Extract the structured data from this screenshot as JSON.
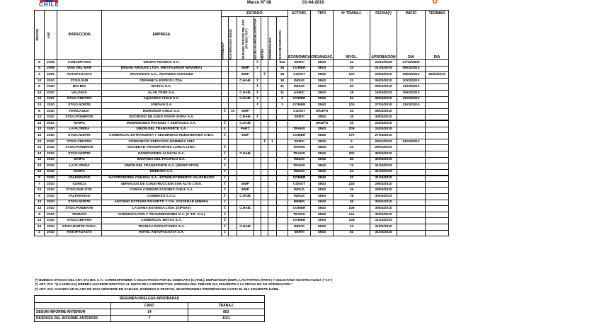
{
  "page": {
    "brand": "CHILE",
    "report_period": "Marzo Nº 08",
    "report_date": "01-04-2010"
  },
  "table": {
    "group_header": "ESTADO",
    "columns": {
      "region": "REGION",
      "ano": "AÑO",
      "inspeccion": "INSPECCION",
      "empresa": "EMPRESA",
      "estado_sub": [
        "APROBADA",
        "POSTERGADA (DIAS)",
        "BUENOS OFICIOS DEL ART. 374 BIS (\"XX\")",
        "NO SE HA HECHO EFECTIVA",
        "HECHA",
        "PRORROGADA",
        "DIAS DE DURACION"
      ],
      "actividad_top": "ACTIVID.",
      "actividad_bottom": "ECONOMICA",
      "tipo_top": "TIPO",
      "tipo_bottom": "ORGANIZAC.",
      "trab_top": "Nº TRABAJ.",
      "trab_bottom": "INVOL.",
      "fecha_top": "FECHA(*)",
      "fecha_bottom": "APROBACION",
      "inicio_top": "INICIO",
      "inicio_bottom": "DIA",
      "termino_top": "TERMINO",
      "termino_bottom": "DIA"
    },
    "rows": [
      {
        "region": "8",
        "ano": "2009",
        "inspeccion": "CONCEPCION",
        "empresa": "GRUPO TECNICO S.A.",
        "e1": "",
        "e2": "",
        "e3": "",
        "e4": "X",
        "e5": "",
        "e6": "",
        "e7": "522",
        "actividad": "SERVI",
        "tipo": "SIND",
        "trab": "31",
        "fecha": "24/12/2009",
        "inicio": "27/12/2009",
        "termino": ""
      },
      {
        "region": "5",
        "ano": "2009",
        "inspeccion": "VIÑA DEL MAR",
        "empresa": "BRUNO ARGUAZ LTDA. (RESTAURANT BAVIERA)",
        "e1": "",
        "e2": "",
        "e3": "EMP",
        "e4": "X",
        "e5": "",
        "e6": "",
        "e7": "26",
        "actividad": "COMER",
        "tipo": "SIND",
        "trab": "33",
        "fecha": "01/03/2010",
        "inicio": "05/03/2010",
        "termino": ""
      },
      {
        "region": "2",
        "ano": "2009",
        "inspeccion": "ANTOFAGASTA",
        "empresa": "GRANADOS S.A., ADANDEZ SANCHEZ",
        "e1": "",
        "e2": "",
        "e3": "EMP",
        "e4": "",
        "e5": "X",
        "e6": "",
        "e7": "18",
        "actividad": "CONST",
        "tipo": "SIND",
        "trab": "103",
        "fecha": "03/03/2010",
        "inicio": "05/03/2010",
        "termino": "30/03/2010"
      },
      {
        "region": "13",
        "ano": "2010",
        "inspeccion": "STGO.SUR",
        "empresa": "CERAMICA ESPEJO LTDA.",
        "e1": "",
        "e2": "",
        "e3": "C.HAB.",
        "e4": "X",
        "e5": "",
        "e6": "",
        "e7": "18",
        "actividad": "INDUS",
        "tipo": "SIND",
        "trab": "33",
        "fecha": "05/03/2010",
        "inicio": "10/03/2010",
        "termino": ""
      },
      {
        "region": "8",
        "ano": "2010",
        "inspeccion": "BIO BIO",
        "empresa": "BOTTAI S.A.",
        "e1": "",
        "e2": "",
        "e3": "",
        "e4": "X",
        "e5": "",
        "e6": "",
        "e7": "11",
        "actividad": "INDUS",
        "tipo": "SIND",
        "trab": "83",
        "fecha": "08/03/2010",
        "inicio": "11/03/2010",
        "termino": ""
      },
      {
        "region": "14",
        "ano": "2010",
        "inspeccion": "VALDIVIA",
        "empresa": "ALAN TENN S.A.",
        "e1": "",
        "e2": "",
        "e3": "C.HAB.",
        "e4": "X",
        "e5": "",
        "e6": "",
        "e7": "11",
        "actividad": "AGRIC",
        "tipo": "SIND",
        "trab": "18",
        "fecha": "16/03/2010",
        "inicio": "19/03/2010",
        "termino": ""
      },
      {
        "region": "13",
        "ano": "2010",
        "inspeccion": "STGO.CENTRO",
        "empresa": "AQUANOX CHILE S.A.",
        "e1": "",
        "e2": "",
        "e3": "C.HAB.",
        "e4": "X",
        "e5": "",
        "e6": "",
        "e7": "3",
        "actividad": "COMER",
        "tipo": "SIND",
        "trab": "94",
        "fecha": "08/03/2010",
        "inicio": "31/03/2010",
        "termino": ""
      },
      {
        "region": "13",
        "ano": "2010",
        "inspeccion": "STGO.NORTE",
        "empresa": "JORDAN S.A.",
        "e1": "",
        "e2": "",
        "e3": "",
        "e4": "X",
        "e5": "",
        "e6": "",
        "e7": "3",
        "actividad": "COMER",
        "tipo": "SIND",
        "trab": "103",
        "fecha": "27/03/2010",
        "inicio": "31/03/2010",
        "termino": ""
      },
      {
        "region": "6",
        "ano": "2010",
        "inspeccion": "RANCAGUA",
        "empresa": "HIDRONOR CHILE S.A.",
        "e1": "X",
        "e2": "10",
        "e3": "EMP",
        "e4": "",
        "e5": "",
        "e6": "",
        "e7": "",
        "actividad": "CONST",
        "tipo": "GRUPO",
        "trab": "33",
        "fecha": "08/03/2010",
        "inicio": "",
        "termino": ""
      },
      {
        "region": "13",
        "ano": "2010",
        "inspeccion": "STGO.PONIENTE",
        "empresa": "SOCIEDAD DE ASEO SANTA SOFIA S.A.",
        "e1": "",
        "e2": "",
        "e3": "C.HAB.",
        "e4": "X",
        "e5": "",
        "e6": "",
        "e7": "",
        "actividad": "SERVI",
        "tipo": "SIND",
        "trab": "16",
        "fecha": "30/03/2010",
        "inicio": "",
        "termino": "",
        "sep": true
      },
      {
        "region": "13",
        "ano": "2010",
        "inspeccion": "MAIPU",
        "empresa": "INVERSIONES PACKING Y SERVICIOS S.A.",
        "e1": "X",
        "e2": "",
        "e3": "C.HAB.",
        "e4": "",
        "e5": "",
        "e6": "",
        "e7": "",
        "actividad": "",
        "tipo": "GRUPO",
        "trab": "33",
        "fecha": "24/03/2010",
        "inicio": "",
        "termino": ""
      },
      {
        "region": "13",
        "ano": "2010",
        "inspeccion": "LA FLORIDA",
        "empresa": "UNION DEL TRANSPORTE S.A.",
        "e1": "X",
        "e2": "",
        "e3": "PART.",
        "e4": "",
        "e5": "",
        "e6": "",
        "e7": "",
        "actividad": "TRANS",
        "tipo": "SIND",
        "trab": "205",
        "fecha": "24/03/2010",
        "inicio": "",
        "termino": ""
      },
      {
        "region": "13",
        "ano": "2010",
        "inspeccion": "STGO.NORTE",
        "empresa": "COMERCIAL EXTRANJERA Y SEGURIDAD HUECHURABA LTDA.",
        "e1": "X",
        "e2": "",
        "e3": "EMP",
        "e4": "",
        "e5": "",
        "e6": "",
        "e7": "",
        "actividad": "COMER",
        "tipo": "SIND",
        "trab": "170",
        "fecha": "27/03/2010",
        "inicio": "",
        "termino": ""
      },
      {
        "region": "13",
        "ano": "2010",
        "inspeccion": "STGO.CENTRO",
        "empresa": "CONSORCIO SERVICIOS HORMIGA 1010",
        "e1": "",
        "e2": "",
        "e3": "",
        "e4": "",
        "e5": "X",
        "e6": "1",
        "e7": "",
        "actividad": "SERVI",
        "tipo": "SIND",
        "trab": "6",
        "fecha": "29/03/2010",
        "inicio": "01/04/2010",
        "termino": ""
      },
      {
        "region": "13",
        "ano": "2010",
        "inspeccion": "STGO.PONIENTE",
        "empresa": "SOCIEDAD TRANSPORTES LORCA LTDA.",
        "e1": "X",
        "e2": "",
        "e3": "",
        "e4": "",
        "e5": "",
        "e6": "",
        "e7": "",
        "actividad": "TRANS",
        "tipo": "SIND",
        "trab": "33",
        "fecha": "29/03/2010",
        "inicio": "",
        "termino": ""
      },
      {
        "region": "13",
        "ano": "2010",
        "inspeccion": "STGO.NORTE",
        "empresa": "INVERSIONES ALSACIA S.A.",
        "e1": "X",
        "e2": "",
        "e3": "C.HAB.",
        "e4": "",
        "e5": "",
        "e6": "",
        "e7": "",
        "actividad": "TRANS",
        "tipo": "SIND",
        "trab": "200",
        "fecha": "30/03/2010",
        "inicio": "",
        "termino": ""
      },
      {
        "region": "13",
        "ano": "2010",
        "inspeccion": "MAIPU",
        "empresa": "ENVASES DEL PACIFICO S.A.",
        "e1": "X",
        "e2": "",
        "e3": "",
        "e4": "",
        "e5": "",
        "e6": "",
        "e7": "",
        "actividad": "INDUS",
        "tipo": "SIND",
        "trab": "84",
        "fecha": "30/03/2010",
        "inicio": "",
        "termino": ""
      },
      {
        "region": "13",
        "ano": "2010",
        "inspeccion": "LA FLORIDA",
        "empresa": "UNION DEL TRANSPORTE S.A. (SINDICATOS)",
        "e1": "X",
        "e2": "",
        "e3": "",
        "e4": "",
        "e5": "",
        "e6": "",
        "e7": "",
        "actividad": "TRANS",
        "tipo": "SIND",
        "trab": "73",
        "fecha": "31/03/2010",
        "inicio": "",
        "termino": ""
      },
      {
        "region": "13",
        "ano": "2010",
        "inspeccion": "MAIPU",
        "empresa": "EMEDIOS S.A.",
        "e1": "X",
        "e2": "",
        "e3": "",
        "e4": "",
        "e5": "",
        "e6": "",
        "e7": "",
        "actividad": "INDUS",
        "tipo": "SIND",
        "trab": "64",
        "fecha": "31/03/2010",
        "inicio": "",
        "termino": "",
        "sep": true
      },
      {
        "region": "5",
        "ano": "2010",
        "inspeccion": "VALPARAISO",
        "empresa": "GASTRONOMIA CHILENA S.A., ESTABLECIMIENTO VALPARAISO",
        "e1": "X",
        "e2": "",
        "e3": "",
        "e4": "",
        "e5": "",
        "e6": "",
        "e7": "",
        "actividad": "COMER",
        "tipo": "SIND",
        "trab": "33",
        "fecha": "31/03/2010",
        "inicio": "",
        "termino": ""
      },
      {
        "region": "7",
        "ano": "2010",
        "inspeccion": "CURICO",
        "empresa": "SERVICIOS DE CONSTRUCCION SAN ALTO LTDA.",
        "e1": "X",
        "e2": "",
        "e3": "EMP",
        "e4": "",
        "e5": "",
        "e6": "",
        "e7": "",
        "actividad": "CONST",
        "tipo": "SIND",
        "trab": "245",
        "fecha": "29/03/2010",
        "inicio": "",
        "termino": ""
      },
      {
        "region": "13",
        "ano": "2010",
        "inspeccion": "STGO.SUR OTE.",
        "empresa": "COMSA COMUNICACIONES CHILE S.A.",
        "e1": "X",
        "e2": "",
        "e3": "EMP",
        "e4": "",
        "e5": "",
        "e6": "",
        "e7": "",
        "actividad": "INDUS",
        "tipo": "SIND",
        "trab": "26",
        "fecha": "29/03/2010",
        "inicio": "",
        "termino": ""
      },
      {
        "region": "5",
        "ano": "2010",
        "inspeccion": "VALPARAISO",
        "empresa": "CAMBIASO S.A.C.",
        "e1": "X",
        "e2": "",
        "e3": "C.HAB.",
        "e4": "",
        "e5": "",
        "e6": "",
        "e7": "",
        "actividad": "INDUS",
        "tipo": "SIND",
        "trab": "78",
        "fecha": "30/03/2010",
        "inicio": "",
        "termino": ""
      },
      {
        "region": "13",
        "ano": "2010",
        "inspeccion": "STGO.NORTE",
        "empresa": "ANTONIO ESTEVEZ ROSSETTI Y CIA. SOCIEDAD MINERA",
        "e1": "X",
        "e2": "",
        "e3": "",
        "e4": "",
        "e5": "",
        "e6": "",
        "e7": "",
        "actividad": "MINER",
        "tipo": "SIND",
        "trab": "36",
        "fecha": "30/03/2010",
        "inicio": "",
        "termino": ""
      },
      {
        "region": "13",
        "ano": "2010",
        "inspeccion": "STGO.PONIENTE",
        "empresa": "LA DAMA EXTENSA LTDA. (SIPSAV)",
        "e1": "X",
        "e2": "",
        "e3": "C.HAB.",
        "e4": "",
        "e5": "",
        "e6": "",
        "e7": "",
        "actividad": "COMER",
        "tipo": "SIND",
        "trab": "108",
        "fecha": "30/03/2010",
        "inicio": "",
        "termino": ""
      },
      {
        "region": "9",
        "ano": "2010",
        "inspeccion": "TEMUCO",
        "empresa": "COMUNICACION Y TRANSMISIONES S.A. (C.T.R. S.A.)",
        "e1": "X",
        "e2": "",
        "e3": "",
        "e4": "",
        "e5": "",
        "e6": "",
        "e7": "",
        "actividad": "TRANS",
        "tipo": "SIND",
        "trab": "141",
        "fecha": "30/03/2010",
        "inicio": "",
        "termino": ""
      },
      {
        "region": "13",
        "ano": "2010",
        "inspeccion": "STGO.CENTRO",
        "empresa": "COMERCIAL BOTAS S.A.",
        "e1": "X",
        "e2": "",
        "e3": "",
        "e4": "",
        "e5": "",
        "e6": "",
        "e7": "",
        "actividad": "COMER",
        "tipo": "SIND",
        "trab": "148",
        "fecha": "31/03/2010",
        "inicio": "",
        "termino": ""
      },
      {
        "region": "13",
        "ano": "2010",
        "inspeccion": "STGO.NORTE CHAC.",
        "empresa": "TECNICA RAPACTAREX S.A.",
        "e1": "X",
        "e2": "",
        "e3": "C.HAB.",
        "e4": "",
        "e5": "",
        "e6": "",
        "e7": "",
        "actividad": "INDUS",
        "tipo": "SIND",
        "trab": "13",
        "fecha": "31/03/2010",
        "inicio": "",
        "termino": ""
      },
      {
        "region": "2",
        "ano": "2010",
        "inspeccion": "ANTOFAGASTA",
        "empresa": "HOTEL ANTOFAGASTA S.A.",
        "e1": "X",
        "e2": "",
        "e3": "",
        "e4": "",
        "e5": "",
        "e6": "",
        "e7": "",
        "actividad": "SERVI",
        "tipo": "SIND",
        "trab": "62",
        "fecha": "31/03/2010",
        "inicio": "",
        "termino": ""
      }
    ]
  },
  "footnotes": [
    "(*) BUENOS OFICIOS DEL ART. 374 BIS, C.T.: CORRESPONDEN A SOLICITADOS POR EL SINDICATO (C.HAB.), EMPLEADOR (EMP.), LAS PARTES (PART.) Y SOLICITADA NO EFECTUADA (\"XX\")",
    "(*) ART. 374: \"(LA HUELGA) DEBERA HACERSE EFECTIVA AL INICIO DE LA RESPECTIVA JORNADA DEL TERCER DIA SIGUIENTE A LA FECHA DE SU APROBACION.\"",
    "(*) ART. 312: CUANDO UN PLAZO DE DIAS VENCIERE EN SABADO, DOMINGO O FESTIVO, SE ENTENDERA PRORROGADO HASTA EL DIA SIGUIENTE HABIL."
  ],
  "summary": {
    "title": "RESUMEN HUELGAS APROBADAS",
    "columns": [
      "",
      "CANT.",
      "TRABAJ."
    ],
    "rows": [
      {
        "label": "SEGUN INFORME ANTERIOR",
        "cant": "14",
        "trab": "853"
      },
      {
        "label": "DESPUES DEL INFORME ANTERIOR",
        "cant": "7",
        "trab": "1151"
      }
    ]
  }
}
